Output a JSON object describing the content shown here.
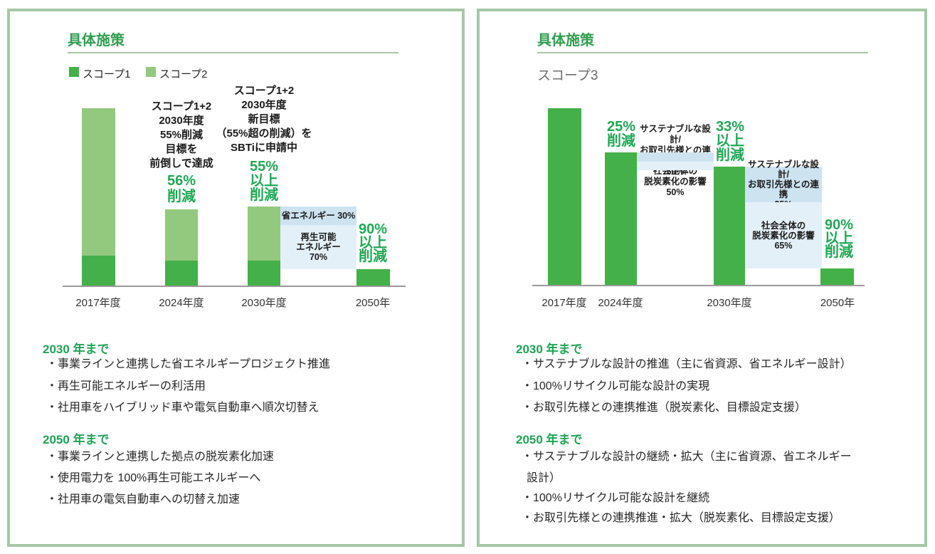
{
  "colors": {
    "panel_border": "#a6c7a6",
    "title_green": "#2f9e4f",
    "heading_green": "#1fa254",
    "accent_green": "#1fa855",
    "bar_dark_green": "#43b049",
    "bar_light_green": "#92c97e",
    "box_blue_dark": "#cde3f0",
    "box_blue_light": "#e4f0f8",
    "axis_gray": "#9a9a9a",
    "scope3_gray": "#6e6e6e",
    "body_text": "#262626"
  },
  "left_panel": {
    "title": "具体施策",
    "legend": [
      {
        "label": "スコープ1",
        "color": "#43b049"
      },
      {
        "label": "スコープ2",
        "color": "#92c97e"
      }
    ],
    "chart_data": {
      "type": "bar",
      "stacked": true,
      "categories": [
        "2017年度",
        "2024年度",
        "2030年度",
        "2050年"
      ],
      "series": [
        {
          "name": "スコープ1",
          "color": "#43b049",
          "values": [
            17.5,
            14.7,
            14.7,
            10
          ]
        },
        {
          "name": "スコープ2",
          "color": "#92c97e",
          "values": [
            82.5,
            28.8,
            30.3,
            0
          ]
        }
      ],
      "totals_vs_2017": [
        100,
        44,
        45,
        10
      ],
      "unit": "index, FY2017 scope1+2 emissions = 100",
      "ylim": [
        0,
        100
      ],
      "grid": false,
      "legend_position": "top-left",
      "annotations": {
        "note_2024": [
          "スコープ1+2",
          "2030年度",
          "55%削減",
          "目標を",
          "前倒しで達成"
        ],
        "result_2024": [
          "56%",
          "削減"
        ],
        "note_2030": [
          "スコープ1+2",
          "2030年度",
          "新目標",
          "（55%超の削減）を",
          "SBTiに申請中"
        ],
        "result_2030": [
          "55%",
          "以上",
          "削減"
        ],
        "result_2050": [
          "90%",
          "以上",
          "削減"
        ],
        "breakdown_2030_to_2050": {
          "top_label": "省エネルギー 30%",
          "bottom_lines": [
            "再生可能",
            "エネルギー",
            "70%"
          ]
        }
      }
    },
    "sections": [
      {
        "heading": "2030 年まで",
        "items": [
          "・事業ラインと連携した省エネルギープロジェクト推進",
          "・再生可能エネルギーの利活用",
          "・社用車をハイブリッド車や電気自動車へ順次切替え"
        ]
      },
      {
        "heading": "2050 年まで",
        "items": [
          "・事業ラインと連携した拠点の脱炭素化加速",
          "・使用電力を 100%再生可能エネルギーへ",
          "・社用車の電気自動車への切替え加速"
        ]
      }
    ]
  },
  "right_panel": {
    "title": "具体施策",
    "scope_label": "スコープ3",
    "chart_data": {
      "type": "bar",
      "stacked": false,
      "categories": [
        "2017年度",
        "2024年度",
        "2030年度",
        "2050年"
      ],
      "series": [
        {
          "name": "スコープ3",
          "color": "#43b049",
          "values": [
            100,
            75,
            67,
            10
          ]
        }
      ],
      "unit": "index, FY2017 scope3 emissions = 100",
      "ylim": [
        0,
        100
      ],
      "grid": false,
      "annotations": {
        "result_2024": [
          "25%",
          "削減"
        ],
        "breakdown_2024_to_2030": {
          "top_lines": [
            "サステナブルな設計/",
            "お取引先様との連携",
            "50%"
          ],
          "bottom_lines": [
            "社会全体の",
            "脱炭素化の影響",
            "50%"
          ]
        },
        "result_2030": [
          "33%",
          "以上",
          "削減"
        ],
        "breakdown_2030_to_2050": {
          "top_lines": [
            "サステナブルな設計/",
            "お取引先様との連携",
            "35%"
          ],
          "bottom_lines": [
            "社会全体の",
            "脱炭素化の影響",
            "65%"
          ]
        },
        "result_2050": [
          "90%",
          "以上",
          "削減"
        ]
      }
    },
    "sections": [
      {
        "heading": "2030 年まで",
        "items": [
          "・サステナブルな設計の推進（主に省資源、省エネルギー設計）",
          "・100%リサイクル可能な設計の実現",
          "・お取引先様との連携推進（脱炭素化、目標設定支援）"
        ]
      },
      {
        "heading": "2050 年まで",
        "items": [
          "・サステナブルな設計の継続・拡大（主に省資源、省エネルギー",
          "設計）",
          "・100%リサイクル可能な設計を継続",
          "・お取引先様との連携推進・拡大（脱炭素化、目標設定支援）"
        ]
      }
    ]
  }
}
